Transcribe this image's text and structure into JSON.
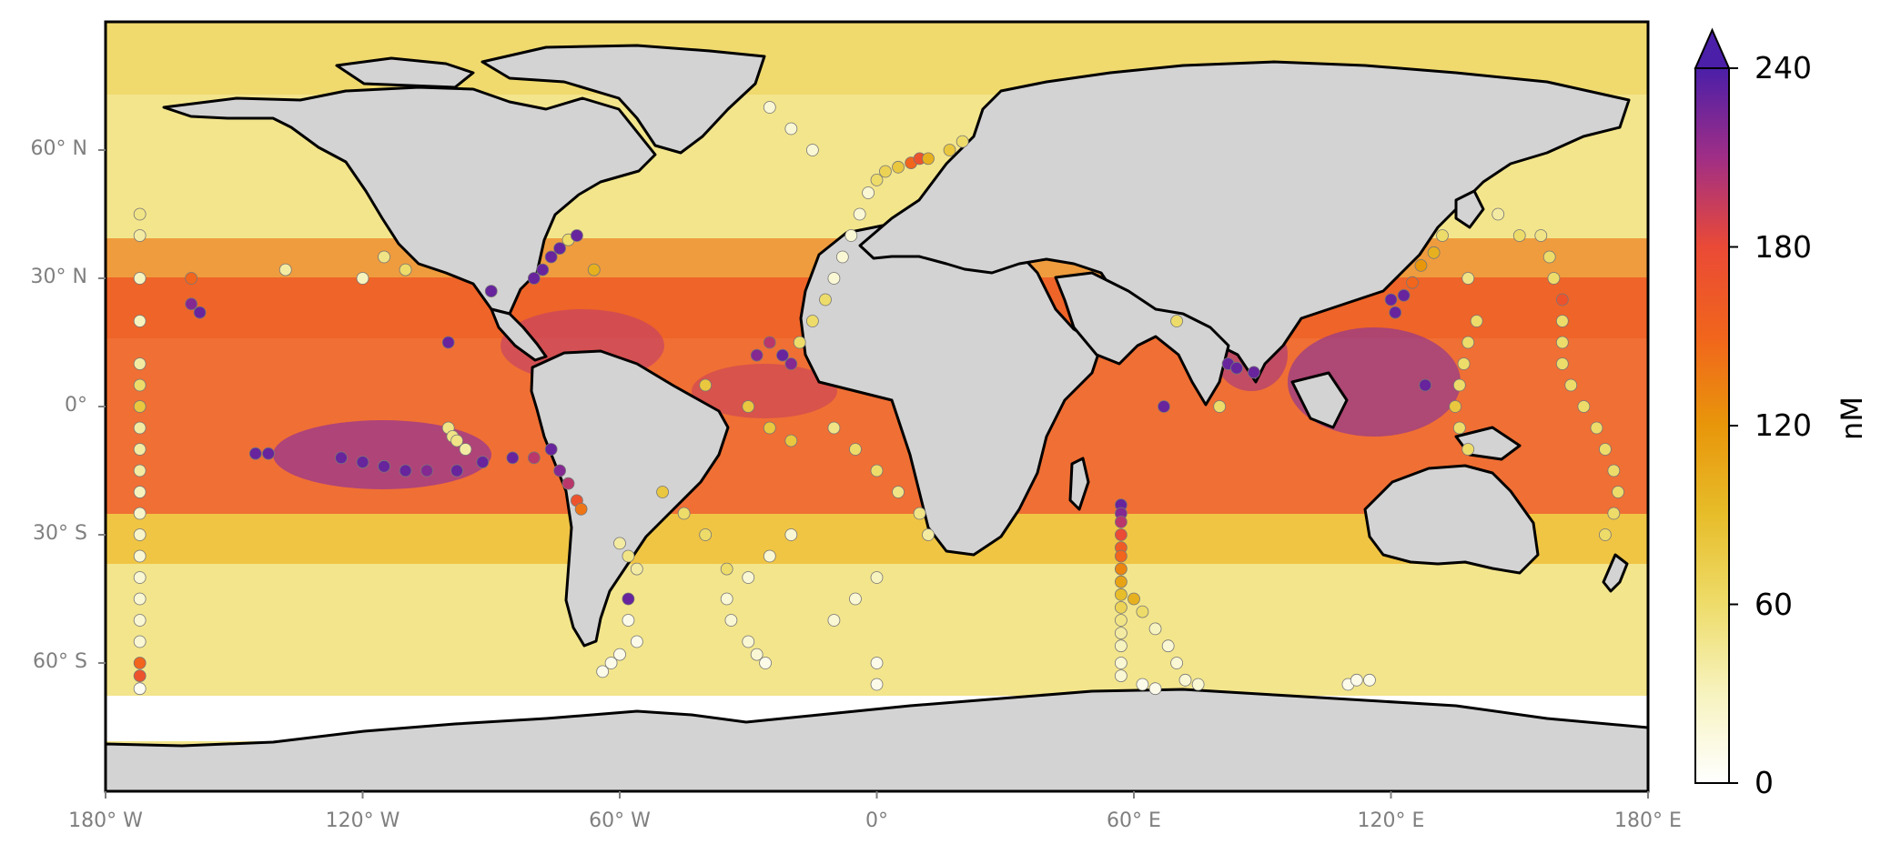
{
  "map": {
    "projection": "PlateCarree",
    "extent": {
      "lon": [
        -180,
        180
      ],
      "lat": [
        -90,
        90
      ]
    },
    "land_color": "#d3d3d3",
    "ocean_field": "surface concentration (nM)",
    "lat_ticks": [
      {
        "value": 60,
        "label": "60° N"
      },
      {
        "value": 30,
        "label": "30° N"
      },
      {
        "value": 0,
        "label": "0°"
      },
      {
        "value": -30,
        "label": "30° S"
      },
      {
        "value": -60,
        "label": "60° S"
      }
    ],
    "lon_ticks": [
      {
        "value": -180,
        "label": "180° W"
      },
      {
        "value": -120,
        "label": "120° W"
      },
      {
        "value": -60,
        "label": "60° W"
      },
      {
        "value": 0,
        "label": "0°"
      },
      {
        "value": 60,
        "label": "60° E"
      },
      {
        "value": 120,
        "label": "120° E"
      },
      {
        "value": 180,
        "label": "180° E"
      }
    ]
  },
  "colorbar": {
    "unit": "nM",
    "min": 0,
    "max": 240,
    "extend": "max",
    "ticks": [
      "0",
      "60",
      "120",
      "180",
      "240"
    ],
    "colors": [
      "#ffffff",
      "#f7f3bf",
      "#eedc6a",
      "#e7bd2a",
      "#e8960a",
      "#f1651c",
      "#ea4a36",
      "#a02e86",
      "#4b1fa8"
    ]
  },
  "observations": [
    [
      -172,
      45,
      50
    ],
    [
      -172,
      40,
      40
    ],
    [
      -172,
      30,
      30
    ],
    [
      -172,
      20,
      30
    ],
    [
      -172,
      10,
      40
    ],
    [
      -172,
      5,
      60
    ],
    [
      -172,
      0,
      80
    ],
    [
      -172,
      -5,
      40
    ],
    [
      -172,
      -10,
      40
    ],
    [
      -172,
      -15,
      40
    ],
    [
      -172,
      -20,
      30
    ],
    [
      -172,
      -25,
      25
    ],
    [
      -172,
      -30,
      25
    ],
    [
      -172,
      -35,
      20
    ],
    [
      -172,
      -40,
      20
    ],
    [
      -172,
      -45,
      20
    ],
    [
      -172,
      -50,
      20
    ],
    [
      -172,
      -55,
      20
    ],
    [
      -172,
      -60,
      150
    ],
    [
      -172,
      -63,
      170
    ],
    [
      -172,
      -66,
      5
    ],
    [
      -160,
      24,
      220
    ],
    [
      -158,
      22,
      230
    ],
    [
      -160,
      30,
      150
    ],
    [
      -145,
      -11,
      230
    ],
    [
      -142,
      -11,
      230
    ],
    [
      -138,
      32,
      40
    ],
    [
      -125,
      -12,
      230
    ],
    [
      -120,
      -13,
      230
    ],
    [
      -115,
      -14,
      230
    ],
    [
      -110,
      -15,
      230
    ],
    [
      -105,
      -15,
      220
    ],
    [
      -100,
      15,
      230
    ],
    [
      -98,
      -15,
      230
    ],
    [
      -92,
      -13,
      230
    ],
    [
      -85,
      -12,
      230
    ],
    [
      -80,
      -12,
      200
    ],
    [
      -76,
      -10,
      230
    ],
    [
      -74,
      -15,
      220
    ],
    [
      -72,
      -18,
      200
    ],
    [
      -70,
      -22,
      170
    ],
    [
      -69,
      -24,
      140
    ],
    [
      -90,
      27,
      230
    ],
    [
      -80,
      30,
      230
    ],
    [
      -78,
      32,
      230
    ],
    [
      -76,
      35,
      230
    ],
    [
      -74,
      37,
      230
    ],
    [
      -72,
      39,
      60
    ],
    [
      -70,
      40,
      230
    ],
    [
      -66,
      32,
      100
    ],
    [
      -100,
      -5,
      50
    ],
    [
      -99,
      -7,
      50
    ],
    [
      -98,
      -8,
      50
    ],
    [
      -96,
      -10,
      40
    ],
    [
      -120,
      30,
      30
    ],
    [
      -115,
      35,
      50
    ],
    [
      -110,
      32,
      60
    ],
    [
      -60,
      -32,
      40
    ],
    [
      -58,
      -35,
      50
    ],
    [
      -56,
      -38,
      40
    ],
    [
      -58,
      -45,
      230
    ],
    [
      -58,
      -50,
      10
    ],
    [
      -56,
      -55,
      10
    ],
    [
      -60,
      -58,
      10
    ],
    [
      -62,
      -60,
      10
    ],
    [
      -64,
      -62,
      10
    ],
    [
      -50,
      -20,
      80
    ],
    [
      -45,
      -25,
      60
    ],
    [
      -40,
      -30,
      60
    ],
    [
      -35,
      -38,
      60
    ],
    [
      -35,
      -45,
      20
    ],
    [
      -34,
      -50,
      20
    ],
    [
      -30,
      -55,
      20
    ],
    [
      -28,
      -58,
      20
    ],
    [
      -26,
      -60,
      10
    ],
    [
      -28,
      12,
      220
    ],
    [
      -25,
      15,
      200
    ],
    [
      -22,
      12,
      230
    ],
    [
      -20,
      10,
      220
    ],
    [
      -18,
      15,
      60
    ],
    [
      -15,
      20,
      60
    ],
    [
      -12,
      25,
      60
    ],
    [
      -10,
      30,
      20
    ],
    [
      -8,
      35,
      20
    ],
    [
      -6,
      40,
      20
    ],
    [
      -4,
      45,
      20
    ],
    [
      -2,
      50,
      20
    ],
    [
      0,
      53,
      60
    ],
    [
      2,
      55,
      70
    ],
    [
      5,
      56,
      80
    ],
    [
      8,
      57,
      150
    ],
    [
      10,
      58,
      170
    ],
    [
      12,
      58,
      100
    ],
    [
      -40,
      5,
      80
    ],
    [
      -30,
      0,
      80
    ],
    [
      -25,
      -5,
      80
    ],
    [
      -20,
      -8,
      80
    ],
    [
      -10,
      -5,
      50
    ],
    [
      -5,
      -10,
      60
    ],
    [
      0,
      -15,
      60
    ],
    [
      5,
      -20,
      50
    ],
    [
      10,
      -25,
      50
    ],
    [
      12,
      -30,
      40
    ],
    [
      0,
      -40,
      30
    ],
    [
      -5,
      -45,
      20
    ],
    [
      -10,
      -50,
      20
    ],
    [
      0,
      -60,
      10
    ],
    [
      0,
      -65,
      10
    ],
    [
      -20,
      -30,
      20
    ],
    [
      -25,
      -35,
      20
    ],
    [
      -30,
      -40,
      20
    ],
    [
      57,
      -23,
      230
    ],
    [
      57,
      -25,
      220
    ],
    [
      57,
      -27,
      200
    ],
    [
      57,
      -30,
      180
    ],
    [
      57,
      -33,
      160
    ],
    [
      57,
      -35,
      150
    ],
    [
      57,
      -38,
      130
    ],
    [
      57,
      -41,
      110
    ],
    [
      57,
      -44,
      90
    ],
    [
      57,
      -47,
      70
    ],
    [
      57,
      -50,
      50
    ],
    [
      57,
      -53,
      40
    ],
    [
      57,
      -56,
      30
    ],
    [
      57,
      -60,
      20
    ],
    [
      57,
      -63,
      20
    ],
    [
      60,
      -45,
      100
    ],
    [
      62,
      -48,
      60
    ],
    [
      65,
      -52,
      30
    ],
    [
      68,
      -56,
      20
    ],
    [
      70,
      -60,
      20
    ],
    [
      72,
      -64,
      20
    ],
    [
      75,
      -65,
      20
    ],
    [
      62,
      -65,
      10
    ],
    [
      65,
      -66,
      10
    ],
    [
      67,
      0,
      230
    ],
    [
      82,
      10,
      230
    ],
    [
      84,
      9,
      230
    ],
    [
      88,
      8,
      230
    ],
    [
      80,
      0,
      60
    ],
    [
      70,
      20,
      60
    ],
    [
      120,
      25,
      230
    ],
    [
      121,
      22,
      230
    ],
    [
      123,
      26,
      230
    ],
    [
      125,
      29,
      150
    ],
    [
      127,
      33,
      120
    ],
    [
      130,
      36,
      100
    ],
    [
      132,
      40,
      60
    ],
    [
      128,
      5,
      230
    ],
    [
      135,
      0,
      80
    ],
    [
      136,
      -5,
      60
    ],
    [
      138,
      -10,
      60
    ],
    [
      140,
      20,
      60
    ],
    [
      138,
      15,
      60
    ],
    [
      137,
      10,
      60
    ],
    [
      136,
      5,
      60
    ],
    [
      138,
      30,
      50
    ],
    [
      155,
      40,
      50
    ],
    [
      157,
      35,
      60
    ],
    [
      158,
      30,
      60
    ],
    [
      160,
      25,
      170
    ],
    [
      160,
      20,
      60
    ],
    [
      160,
      15,
      60
    ],
    [
      160,
      10,
      60
    ],
    [
      162,
      5,
      60
    ],
    [
      165,
      0,
      60
    ],
    [
      168,
      -5,
      60
    ],
    [
      170,
      -10,
      60
    ],
    [
      172,
      -15,
      60
    ],
    [
      173,
      -20,
      60
    ],
    [
      172,
      -25,
      60
    ],
    [
      170,
      -30,
      60
    ],
    [
      145,
      45,
      40
    ],
    [
      150,
      40,
      60
    ],
    [
      110,
      -65,
      10
    ],
    [
      112,
      -64,
      10
    ],
    [
      115,
      -64,
      10
    ],
    [
      17,
      60,
      80
    ],
    [
      20,
      62,
      60
    ],
    [
      -15,
      60,
      20
    ],
    [
      -20,
      65,
      20
    ],
    [
      -25,
      70,
      20
    ]
  ]
}
